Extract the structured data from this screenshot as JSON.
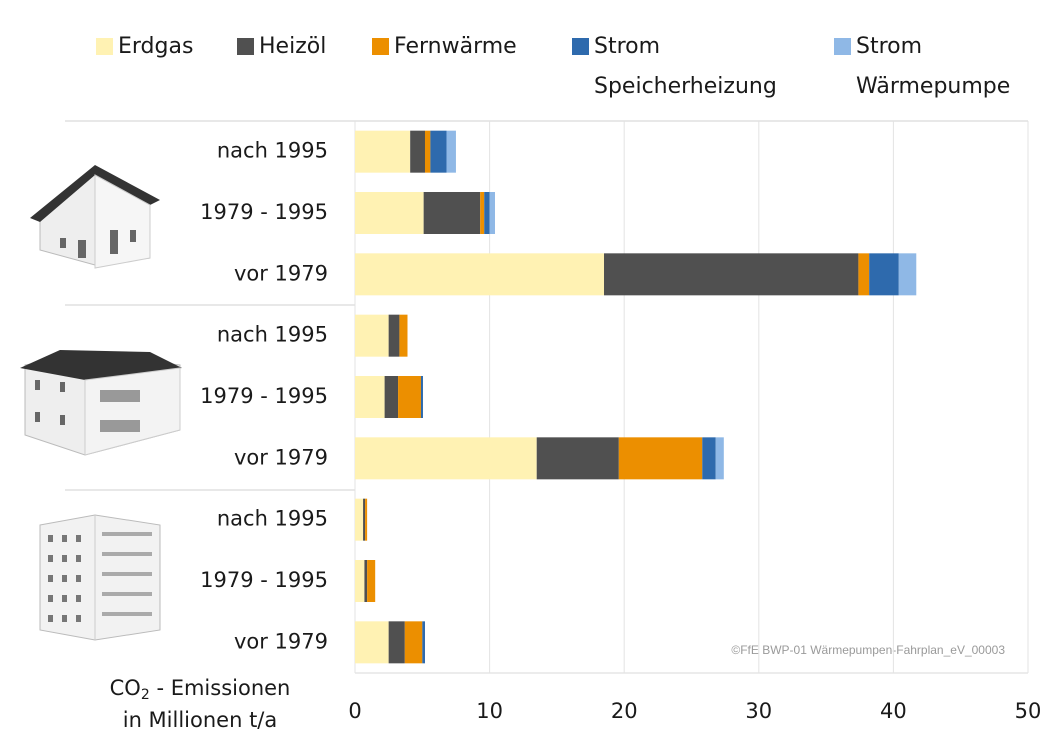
{
  "chart_data": {
    "type": "stacked-barh",
    "categories": [
      "nach 1995",
      "1979 - 1995",
      "vor 1979",
      "nach 1995",
      "1979 - 1995",
      "vor 1979",
      "nach 1995",
      "1979 - 1995",
      "vor 1979"
    ],
    "series": [
      {
        "name": "Erdgas",
        "color": "#fff2b3",
        "values": [
          4.1,
          5.1,
          18.5,
          2.5,
          2.2,
          13.5,
          0.6,
          0.7,
          2.5
        ]
      },
      {
        "name": "Heizöl",
        "color": "#505050",
        "values": [
          1.1,
          4.2,
          18.9,
          0.8,
          1.0,
          6.1,
          0.15,
          0.2,
          1.2
        ]
      },
      {
        "name": "Fernwärme",
        "color": "#ec8f00",
        "values": [
          0.4,
          0.3,
          0.8,
          0.6,
          1.7,
          6.2,
          0.15,
          0.6,
          1.3
        ]
      },
      {
        "name": "Strom\nSpeicherheizung",
        "color": "#2e6aad",
        "values": [
          1.2,
          0.4,
          2.2,
          0,
          0.15,
          1.0,
          0,
          0,
          0.2
        ]
      },
      {
        "name": "Strom\nWärmepumpe",
        "color": "#8fb8e6",
        "values": [
          0.7,
          0.4,
          1.3,
          0,
          0,
          0.6,
          0,
          0,
          0
        ]
      }
    ],
    "xlim": [
      0,
      50
    ],
    "xticks": [
      0,
      10,
      20,
      30,
      40,
      50
    ],
    "grid": true,
    "xlabel": {
      "main": "CO",
      "sub": "2",
      "rest": " - Emissionen",
      "line2": "in Millionen t/a"
    },
    "annotation": "©FfE BWP-01 Wärmepumpen-Fahrplan_eV_00003"
  }
}
